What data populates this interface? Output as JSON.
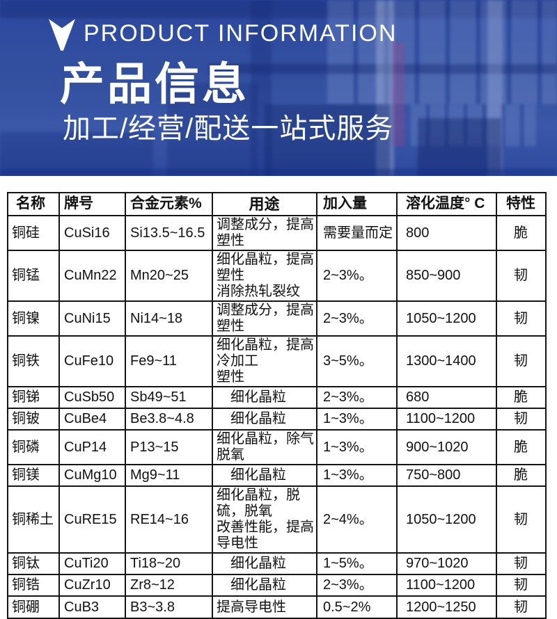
{
  "header": {
    "en_title": "PRODUCT INFORMATION",
    "cn_title": "产品信息",
    "subtitle": "加工/经营/配送一站式服务",
    "accent_color": "#2e4ca6",
    "text_color": "#ffffff"
  },
  "table": {
    "columns": [
      "名称",
      "牌号",
      "合金元素%",
      "用途",
      "加入量",
      "溶化温度° C",
      "特性"
    ],
    "rows": [
      {
        "name": "铜硅",
        "grade": "CuSi16",
        "alloy": "Si13.5~16.5",
        "usage": "调整成分，提高塑性",
        "amount": "需要量而定",
        "temp": "800",
        "trait": "脆"
      },
      {
        "name": "铜锰",
        "grade": "CuMn22",
        "alloy": "Mn20~25",
        "usage": "细化晶粒，提高塑性\n消除热轧裂纹",
        "amount": "2~3%。",
        "temp": "850~900",
        "trait": "韧"
      },
      {
        "name": "铜镍",
        "grade": "CuNi15",
        "alloy": "Ni14~18",
        "usage": "调整成分，提高塑性",
        "amount": "2~3%。",
        "temp": "1050~1200",
        "trait": "韧"
      },
      {
        "name": "铜铁",
        "grade": "CuFe10",
        "alloy": "Fe9~11",
        "usage": "细化晶粒，提高冷加工\n塑性",
        "amount": "3~5%。",
        "temp": "1300~1400",
        "trait": "韧"
      },
      {
        "name": "铜锑",
        "grade": "CuSb50",
        "alloy": "Sb49~51",
        "usage": "　细化晶粒",
        "amount": "2~3%。",
        "temp": "680",
        "trait": "脆"
      },
      {
        "name": "铜铍",
        "grade": "CuBe4",
        "alloy": "Be3.8~4.8",
        "usage": "　细化晶粒",
        "amount": "1~3%。",
        "temp": "1100~1200",
        "trait": "韧"
      },
      {
        "name": "铜磷",
        "grade": "CuP14",
        "alloy": "P13~15",
        "usage": "细化晶粒，除气脱氧",
        "amount": "1~3%。",
        "temp": "900~1020",
        "trait": "脆"
      },
      {
        "name": "铜镁",
        "grade": "CuMg10",
        "alloy": "Mg9~11",
        "usage": "　细化晶粒",
        "amount": "1~3%。",
        "temp": "750~800",
        "trait": "脆"
      },
      {
        "name": "铜稀土",
        "grade": "CuRE15",
        "alloy": "RE14~16",
        "usage": "细化晶粒，脱硫，脱氧\n改善性能，提高导电性",
        "amount": "2~4%。",
        "temp": "1050~1200",
        "trait": "韧"
      },
      {
        "name": "铜钛",
        "grade": "CuTi20",
        "alloy": "Ti18~20",
        "usage": "　细化晶粒",
        "amount": "1~5%。",
        "temp": "970~1020",
        "trait": "韧"
      },
      {
        "name": "铜锆",
        "grade": "CuZr10",
        "alloy": "Zr8~12",
        "usage": "　细化晶粒",
        "amount": "2~3%。",
        "temp": "1100~1200",
        "trait": "韧"
      },
      {
        "name": "铜硼",
        "grade": "CuB3",
        "alloy": "B3~3.8",
        "usage": "提高导电性",
        "amount": "0.5~2%",
        "temp": "1200~1250",
        "trait": "韧"
      }
    ]
  }
}
